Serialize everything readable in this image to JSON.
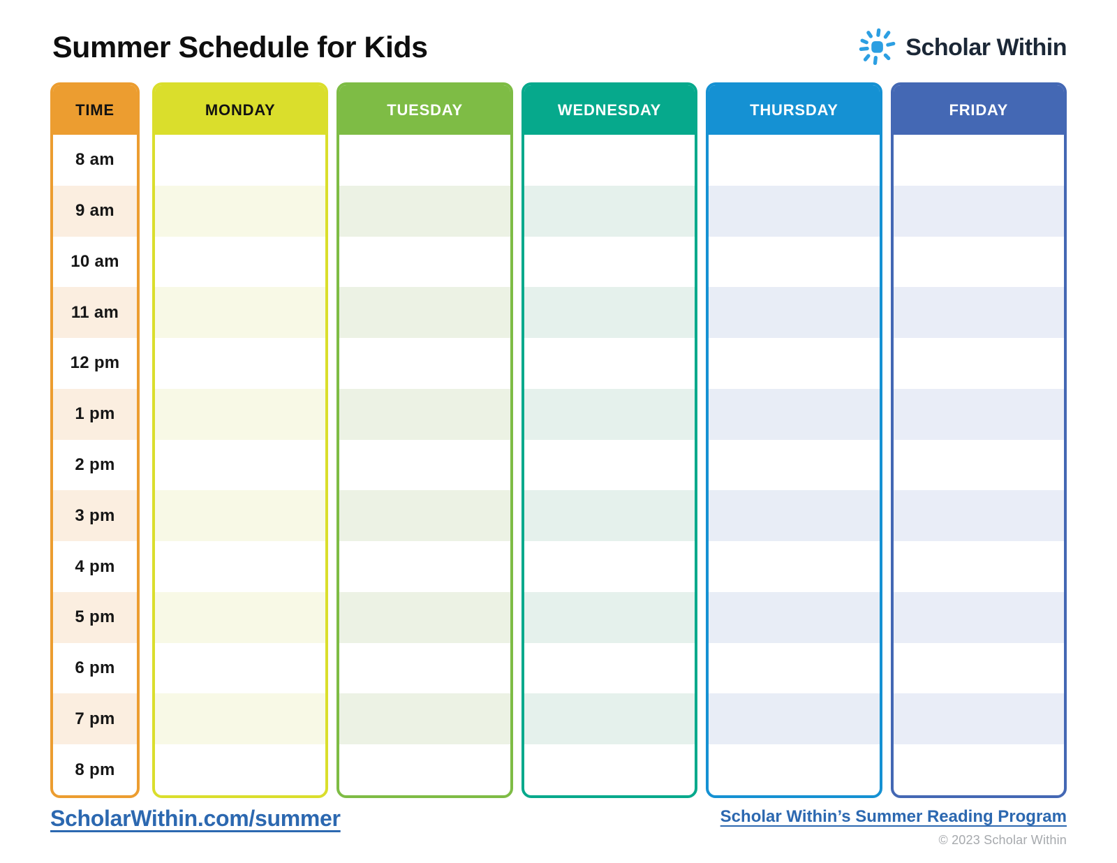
{
  "page": {
    "title": "Summer Schedule for Kids"
  },
  "logo": {
    "brand": "Scholar Within",
    "icon": "sun-icon",
    "sun_color": "#2c9fe2",
    "text_color": "#1b2736"
  },
  "schedule": {
    "time_column": {
      "header": "TIME",
      "color": "#ec9d30",
      "stripe": "#fbeee0",
      "header_text": "#121212"
    },
    "times": [
      "8 am",
      "9 am",
      "10 am",
      "11 am",
      "12 pm",
      "1 pm",
      "2 pm",
      "3 pm",
      "4 pm",
      "5 pm",
      "6 pm",
      "7 pm",
      "8 pm"
    ],
    "days": [
      {
        "label": "MONDAY",
        "color": "#dade2c",
        "stripe": "#f8f9e6",
        "header_text": "#121212"
      },
      {
        "label": "TUESDAY",
        "color": "#7ebc45",
        "stripe": "#ecf2e4",
        "header_text": "#ffffff"
      },
      {
        "label": "WEDNESDAY",
        "color": "#06a98c",
        "stripe": "#e5f1ec",
        "header_text": "#ffffff"
      },
      {
        "label": "THURSDAY",
        "color": "#1591d3",
        "stripe": "#e8edf6",
        "header_text": "#ffffff"
      },
      {
        "label": "FRIDAY",
        "color": "#4468b4",
        "stripe": "#e9edf7",
        "header_text": "#ffffff"
      }
    ]
  },
  "footer": {
    "left_link": "ScholarWithin.com/summer",
    "right_link": "Scholar Within’s Summer Reading Program",
    "copyright": "© 2023 Scholar Within",
    "link_color": "#2c68b0"
  }
}
